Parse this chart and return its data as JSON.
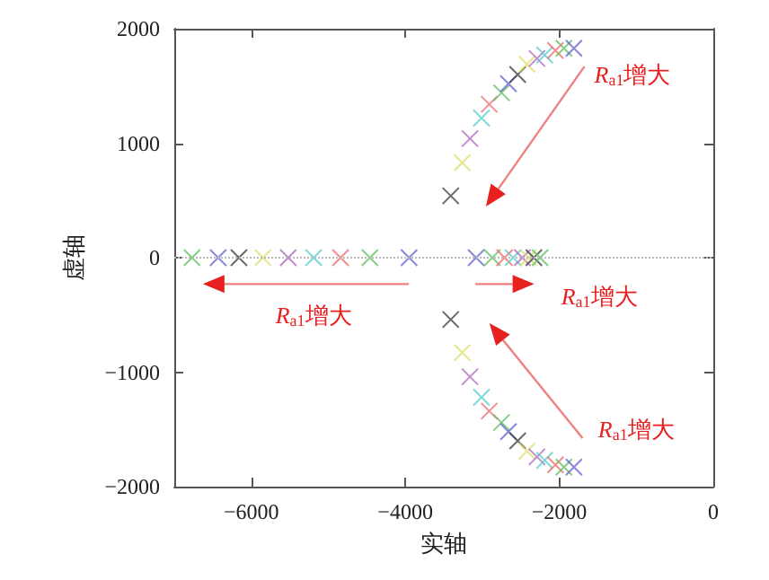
{
  "chart_data": {
    "type": "scatter",
    "xlabel": "实轴",
    "ylabel": "虚轴",
    "xlim": [
      -7000,
      0
    ],
    "xticks": [
      -6000,
      -4000,
      -2000,
      0
    ],
    "ylim": [
      -2000,
      2000
    ],
    "yticks": [
      -2000,
      -1000,
      0,
      1000,
      2000
    ],
    "grid": false,
    "marker": "cross",
    "x": [
      -6770,
      -6430,
      -6160,
      -5850,
      -5520,
      -5190,
      -4840,
      -4460,
      -3950,
      -3080,
      -2870,
      -2710,
      -2600,
      -2480,
      -2400,
      -2330,
      -2250,
      -3410,
      -3260,
      -3160,
      -3010,
      -2910,
      -2750,
      -2660,
      -2540,
      -2420,
      -2290,
      -2190,
      -2050,
      -1940,
      -1810,
      -3410,
      -3260,
      -3160,
      -3010,
      -2910,
      -2750,
      -2660,
      -2540,
      -2420,
      -2290,
      -2190,
      -2050,
      -1940,
      -1810
    ],
    "values": [
      0,
      0,
      0,
      0,
      0,
      0,
      0,
      0,
      0,
      0,
      0,
      0,
      0,
      0,
      0,
      0,
      0,
      540,
      830,
      1040,
      1220,
      1340,
      1440,
      1520,
      1600,
      1690,
      1740,
      1770,
      1810,
      1830,
      1830,
      -540,
      -830,
      -1040,
      -1220,
      -1340,
      -1440,
      -1520,
      -1600,
      -1690,
      -1740,
      -1770,
      -1810,
      -1830,
      -1830
    ],
    "colors": [
      "#66c266",
      "#6a6ad0",
      "#444444",
      "#e0e070",
      "#b070c0",
      "#60d0d0",
      "#f07070",
      "#66c266",
      "#6a6ad0",
      "#6a6ad0",
      "#66c266",
      "#f07070",
      "#60d0d0",
      "#b070c0",
      "#e0e070",
      "#444444",
      "#66c266",
      "#444444",
      "#e0e070",
      "#b070c0",
      "#60d0d0",
      "#f07070",
      "#66c266",
      "#6a6ad0",
      "#444444",
      "#e0e070",
      "#b070c0",
      "#60d0d0",
      "#f07070",
      "#66c266",
      "#6a6ad0",
      "#444444",
      "#e0e070",
      "#b070c0",
      "#60d0d0",
      "#f07070",
      "#66c266",
      "#6a6ad0",
      "#444444",
      "#e0e070",
      "#b070c0",
      "#60d0d0",
      "#f07070",
      "#66c266",
      "#6a6ad0"
    ],
    "ref_lines": [
      {
        "axis": "y",
        "value": 0,
        "line_style": "dotted",
        "color": "#bbbbbb"
      }
    ],
    "annotations": [
      "R$_{a1}$增大",
      "R$_{a1}$增大",
      "R$_{a1}$增大",
      "R$_{a1}$增大"
    ]
  }
}
